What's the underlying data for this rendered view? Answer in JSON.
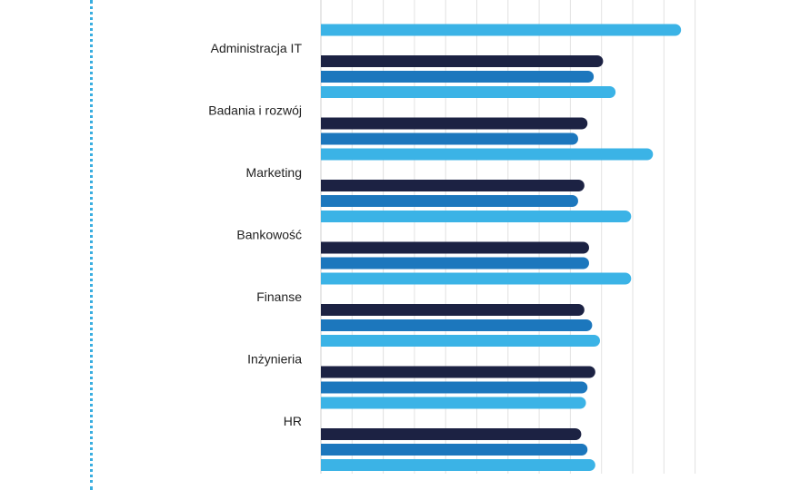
{
  "chart_data": {
    "type": "bar",
    "orientation": "horizontal",
    "grid": true,
    "xlim": [
      0,
      12
    ],
    "categories": [
      "",
      "Administracja IT",
      "Badania i rozwój",
      "Marketing",
      "Bankowość",
      "Finanse",
      "Inżynieria",
      "HR"
    ],
    "series": [
      {
        "values": [
          null,
          9.05,
          8.55,
          8.45,
          8.6,
          8.45,
          8.8,
          8.35
        ]
      },
      {
        "values": [
          null,
          8.75,
          8.25,
          8.25,
          8.6,
          8.7,
          8.55,
          8.55
        ]
      },
      {
        "values": [
          11.55,
          9.45,
          10.65,
          9.95,
          9.95,
          8.95,
          8.5,
          8.8
        ]
      }
    ]
  },
  "colors": {
    "series": [
      "#1c2243",
      "#1c77bd",
      "#3bb3e6"
    ],
    "grid": "#e2e2e2",
    "divider": "#3aaee0"
  }
}
